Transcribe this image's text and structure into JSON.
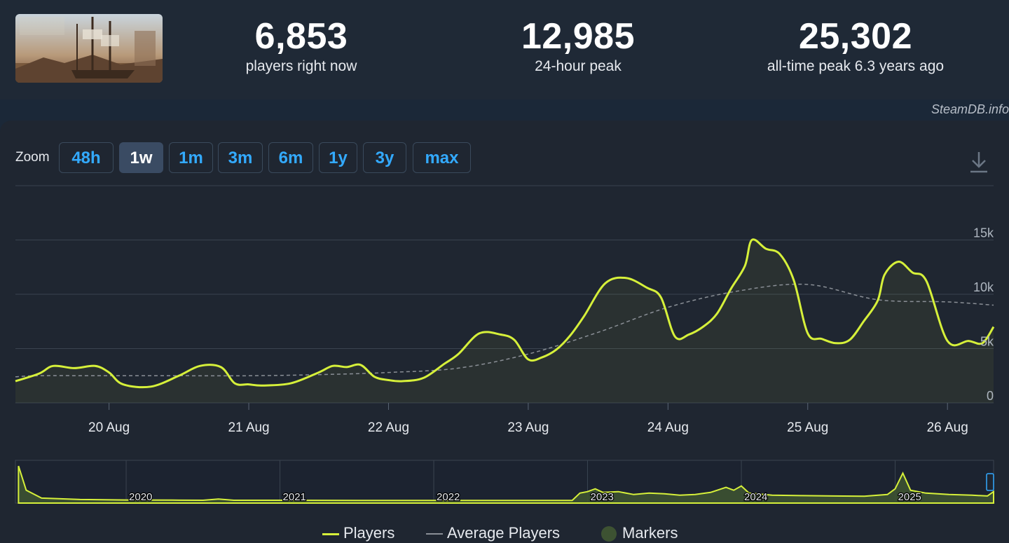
{
  "header": {
    "stats": [
      {
        "value": "6,853",
        "label": "players right now"
      },
      {
        "value": "12,985",
        "label": "24-hour peak"
      },
      {
        "value": "25,302",
        "label": "all-time peak 6.3 years ago"
      }
    ]
  },
  "credit": "SteamDB.info",
  "zoom": {
    "label": "Zoom",
    "buttons": [
      "48h",
      "1w",
      "1m",
      "3m",
      "6m",
      "1y",
      "3y",
      "max"
    ],
    "active": "1w"
  },
  "colors": {
    "players": "#d6f03a",
    "average": "#8a8f96",
    "markers": "#3d5232",
    "grid": "#3a4350",
    "button_text": "#33aaff"
  },
  "legend": {
    "players": "Players",
    "average": "Average Players",
    "markers": "Markers"
  },
  "chart_data": [
    {
      "type": "line",
      "y_ticks": [
        "0",
        "5k",
        "10k",
        "15k"
      ],
      "ylim": [
        0,
        20000
      ],
      "x_ticks": [
        "20 Aug",
        "21 Aug",
        "22 Aug",
        "23 Aug",
        "24 Aug",
        "25 Aug",
        "26 Aug"
      ],
      "xlim": [
        -0.67,
        6.33
      ],
      "grid": true,
      "legend_position": "bottom-center",
      "series": [
        {
          "name": "Players",
          "x": [
            -0.67,
            -0.5,
            -0.4,
            -0.25,
            -0.1,
            0,
            0.1,
            0.3,
            0.5,
            0.65,
            0.8,
            0.9,
            1,
            1.1,
            1.3,
            1.5,
            1.6,
            1.7,
            1.8,
            1.9,
            2,
            2.1,
            2.25,
            2.4,
            2.5,
            2.65,
            2.8,
            2.9,
            3,
            3.1,
            3.2,
            3.3,
            3.4,
            3.55,
            3.7,
            3.85,
            3.95,
            4.05,
            4.15,
            4.25,
            4.35,
            4.45,
            4.55,
            4.6,
            4.7,
            4.8,
            4.9,
            5,
            5.1,
            5.2,
            5.3,
            5.4,
            5.5,
            5.55,
            5.65,
            5.75,
            5.85,
            6,
            6.15,
            6.25,
            6.33
          ],
          "y": [
            2000,
            2700,
            3400,
            3200,
            3400,
            2800,
            1700,
            1500,
            2500,
            3400,
            3300,
            1800,
            1700,
            1600,
            1800,
            2800,
            3400,
            3300,
            3500,
            2400,
            2100,
            2000,
            2300,
            3600,
            4500,
            6400,
            6300,
            5800,
            4000,
            4200,
            4900,
            6200,
            8000,
            11000,
            11500,
            10600,
            9700,
            6100,
            6300,
            7000,
            8200,
            10500,
            12600,
            15000,
            14200,
            13700,
            11300,
            6400,
            5900,
            5500,
            5800,
            7500,
            9400,
            11800,
            13000,
            12000,
            11200,
            5700,
            5700,
            5500,
            7000
          ]
        },
        {
          "name": "Average Players",
          "x": [
            -0.67,
            -0.5,
            0,
            0.5,
            1,
            1.5,
            2,
            2.5,
            3,
            3.5,
            4,
            4.5,
            5,
            5.5,
            6,
            6.33
          ],
          "y": [
            2400,
            2500,
            2500,
            2500,
            2500,
            2600,
            2800,
            3200,
            4500,
            6500,
            8800,
            10300,
            10900,
            9500,
            9300,
            9000
          ]
        }
      ]
    },
    {
      "type": "area",
      "x_ticks": [
        "2020",
        "2021",
        "2022",
        "2023",
        "2024",
        "2025"
      ],
      "xlim": [
        2019.28,
        2025.64
      ],
      "ylim": [
        0,
        27000
      ],
      "series": [
        {
          "name": "Players",
          "x": [
            2019.3,
            2019.35,
            2019.45,
            2019.7,
            2020,
            2020.3,
            2020.5,
            2020.6,
            2020.7,
            2021,
            2021.5,
            2022,
            2022.5,
            2022.9,
            2022.95,
            2023.0,
            2023.05,
            2023.1,
            2023.2,
            2023.3,
            2023.4,
            2023.5,
            2023.6,
            2023.7,
            2023.8,
            2023.9,
            2023.95,
            2024.0,
            2024.05,
            2024.1,
            2024.2,
            2024.4,
            2024.6,
            2024.8,
            2024.95,
            2025.0,
            2025.05,
            2025.1,
            2025.2,
            2025.35,
            2025.5,
            2025.6,
            2025.64
          ],
          "y": [
            25000,
            8000,
            2500,
            1500,
            1200,
            1100,
            1000,
            1800,
            1000,
            1000,
            900,
            900,
            900,
            900,
            6000,
            7000,
            9000,
            6500,
            7000,
            5000,
            6000,
            5500,
            4500,
            5000,
            6500,
            10000,
            8000,
            11000,
            6000,
            5500,
            4500,
            4200,
            4000,
            3800,
            5000,
            9000,
            20000,
            8000,
            6000,
            5000,
            4500,
            4000,
            7000
          ]
        }
      ]
    }
  ]
}
